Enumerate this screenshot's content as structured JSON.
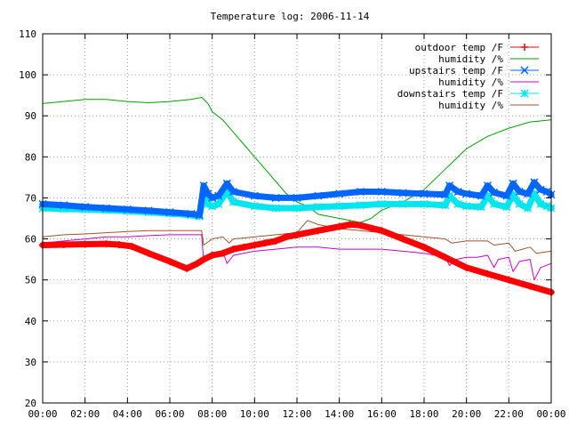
{
  "chart_data": {
    "type": "line",
    "title": "Temperature log: 2006-11-14",
    "xlabel": "",
    "ylabel": "",
    "xlim": [
      0,
      24
    ],
    "ylim": [
      20,
      110
    ],
    "grid": true,
    "legend_position": "top-right",
    "x_ticks": [
      "00:00",
      "02:00",
      "04:00",
      "06:00",
      "08:00",
      "10:00",
      "12:00",
      "14:00",
      "16:00",
      "18:00",
      "20:00",
      "22:00",
      "00:00"
    ],
    "y_ticks": [
      20,
      30,
      40,
      50,
      60,
      70,
      80,
      90,
      100,
      110
    ],
    "series": [
      {
        "name": "outdoor temp /F",
        "color": "#ff0000",
        "marker": "plus",
        "x": [
          0,
          1,
          2,
          3,
          3.6,
          4.2,
          5,
          6,
          6.8,
          7.3,
          7.6,
          8,
          8.5,
          9,
          9.5,
          10,
          10.5,
          11,
          11.5,
          12,
          13,
          14,
          14.5,
          15,
          16,
          17,
          18,
          19,
          20,
          21,
          22,
          23,
          24
        ],
        "y": [
          58.5,
          58.6,
          58.7,
          58.8,
          58.6,
          58.2,
          56.5,
          54.5,
          52.8,
          54,
          55,
          56,
          56.5,
          57.5,
          58,
          58.5,
          59,
          59.5,
          60.5,
          61,
          62,
          63,
          63.5,
          63.3,
          62,
          60,
          58,
          55.5,
          53,
          51.5,
          50,
          48.5,
          47
        ]
      },
      {
        "name": "humidity /%",
        "color": "#00a000",
        "marker": "none",
        "x": [
          0,
          1,
          2,
          3,
          4,
          5,
          6,
          7,
          7.5,
          7.8,
          8,
          8.5,
          9,
          9.5,
          10,
          10.5,
          11,
          11.5,
          12,
          12.5,
          13,
          14,
          14.5,
          15,
          15.5,
          16,
          17,
          18,
          19,
          20,
          21,
          22,
          23,
          24
        ],
        "y": [
          93,
          93.5,
          94,
          94,
          93.5,
          93.2,
          93.5,
          94,
          94.5,
          93,
          91,
          89,
          86,
          83,
          80,
          77,
          74,
          71,
          69,
          68,
          66,
          65,
          64.5,
          64,
          65,
          67,
          69,
          72,
          77,
          82,
          85,
          87,
          88.5,
          89
        ]
      },
      {
        "name": "upstairs temp /F",
        "color": "#0066ff",
        "marker": "cross",
        "x": [
          0,
          1,
          2,
          3,
          4,
          5,
          6,
          7,
          7.4,
          7.6,
          7.8,
          8,
          8.3,
          8.7,
          9,
          10,
          11,
          12,
          13,
          14,
          15,
          16,
          17,
          18,
          19,
          19.2,
          19.6,
          20,
          20.7,
          21,
          21.3,
          21.9,
          22.2,
          22.5,
          22.9,
          23.2,
          23.5,
          23.8,
          24
        ],
        "y": [
          68.5,
          68.2,
          67.8,
          67.5,
          67.2,
          66.9,
          66.5,
          66.1,
          65.8,
          73,
          71,
          70,
          70.5,
          73.5,
          71.5,
          70.5,
          70,
          70,
          70.5,
          71,
          71.5,
          71.5,
          71.2,
          71,
          70.8,
          73,
          71.5,
          71,
          70.5,
          73,
          71.3,
          70.5,
          73.5,
          71.5,
          71,
          73.8,
          72,
          71.5,
          70.8
        ]
      },
      {
        "name": "humidity /%",
        "color": "#cc00cc",
        "marker": "none",
        "x": [
          0,
          1,
          2,
          3,
          4,
          5,
          6,
          7,
          7.5,
          7.6,
          8,
          8.5,
          8.7,
          9,
          10,
          11,
          12,
          13,
          14,
          15,
          16,
          17,
          18,
          19,
          19.2,
          19.5,
          20,
          20.5,
          21,
          21.3,
          21.5,
          22,
          22.2,
          22.5,
          23,
          23.2,
          23.5,
          24
        ],
        "y": [
          59,
          59.5,
          60,
          60.5,
          60.5,
          60.8,
          61,
          61,
          61,
          54.5,
          56,
          57,
          54,
          56,
          57,
          57.5,
          58,
          58,
          57.5,
          57.5,
          57.5,
          57,
          56.5,
          55.5,
          53.5,
          55,
          55.5,
          55.5,
          56,
          53,
          55,
          55.5,
          52,
          54.5,
          55,
          50,
          53,
          54
        ]
      },
      {
        "name": "downstairs temp /F",
        "color": "#00e5ee",
        "marker": "star",
        "x": [
          0,
          1,
          2,
          3,
          4,
          5,
          6,
          7,
          7.4,
          7.6,
          7.8,
          8,
          8.3,
          8.7,
          9,
          10,
          11,
          12,
          13,
          14,
          15,
          16,
          17,
          18,
          19,
          19.2,
          19.6,
          20,
          20.7,
          21,
          21.3,
          21.9,
          22.2,
          22.5,
          22.9,
          23.2,
          23.5,
          23.8,
          24
        ],
        "y": [
          67.5,
          67.3,
          67.2,
          67,
          66.8,
          66.5,
          66.2,
          65.8,
          65.5,
          71,
          68.5,
          68,
          68.5,
          71.5,
          69,
          68,
          67.5,
          67.5,
          67.8,
          68,
          68.2,
          68.5,
          68.5,
          68.5,
          68.2,
          70.5,
          68.5,
          68,
          67.8,
          70.5,
          68.5,
          67.8,
          70.8,
          68.5,
          67.5,
          71,
          68.5,
          68,
          67.5
        ]
      },
      {
        "name": "humidity /%",
        "color": "#a0522d",
        "marker": "none",
        "x": [
          0,
          1,
          2,
          3,
          4,
          5,
          6,
          7,
          7.5,
          7.6,
          8,
          8.5,
          8.8,
          9,
          10,
          11,
          12,
          12.5,
          13,
          14,
          15,
          16,
          17,
          18,
          19,
          19.3,
          20,
          21,
          21.3,
          22,
          22.3,
          23,
          23.3,
          24
        ],
        "y": [
          60.5,
          61,
          61.2,
          61.5,
          61.8,
          62,
          62,
          62,
          62,
          58.5,
          60,
          60.5,
          59,
          60,
          60.5,
          61,
          61.5,
          64.5,
          63.5,
          62.5,
          62,
          61.5,
          61,
          60.5,
          60,
          59,
          59.5,
          59.5,
          58.5,
          59,
          57,
          58,
          56.5,
          57
        ]
      }
    ]
  }
}
